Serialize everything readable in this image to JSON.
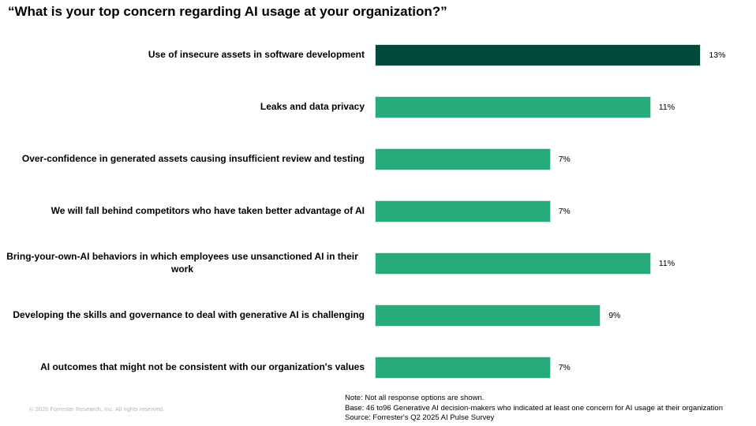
{
  "title": "“What is your top concern regarding AI usage at your organization?”",
  "chart_data": {
    "type": "bar",
    "orientation": "horizontal",
    "title": "“What is your top concern regarding AI usage at your organization?”",
    "categories": [
      "Use of insecure assets in software development",
      "Leaks and data privacy",
      "Over-confidence in generated assets causing insufficient review and testing",
      "We will fall behind competitors who have taken better advantage of AI",
      "Bring-your-own-AI behaviors in which employees use unsanctioned AI in their work",
      "Developing the skills and governance to deal with generative AI is challenging",
      "AI outcomes that might not be consistent with our organization's values"
    ],
    "values": [
      13,
      11,
      7,
      7,
      11,
      9,
      7
    ],
    "value_labels": [
      "13%",
      "11%",
      "7%",
      "7%",
      "11%",
      "9%",
      "7%"
    ],
    "bar_colors": [
      "#00493B",
      "#27AB7A",
      "#27AB7A",
      "#27AB7A",
      "#27AB7A",
      "#27AB7A",
      "#27AB7A"
    ],
    "xlabel": "",
    "ylabel": "",
    "xlim": [
      0,
      15
    ],
    "grid": false,
    "legend": "none",
    "data_labels": "outside-end"
  },
  "colors": {
    "accent_dark_green": "#00493B",
    "accent_green": "#27AB7A",
    "note_gray": "#b5b5b5"
  },
  "footer": {
    "copyright": "© 2026 Forrester Research, Inc. All rights reserved.",
    "notes": [
      "Note: Not all response options are shown.",
      "Base: 46 to96 Generative AI decision-makers who indicated at least one concern for AI usage at their organization",
      "Source: Forrester's Q2 2025 AI Pulse Survey"
    ]
  }
}
